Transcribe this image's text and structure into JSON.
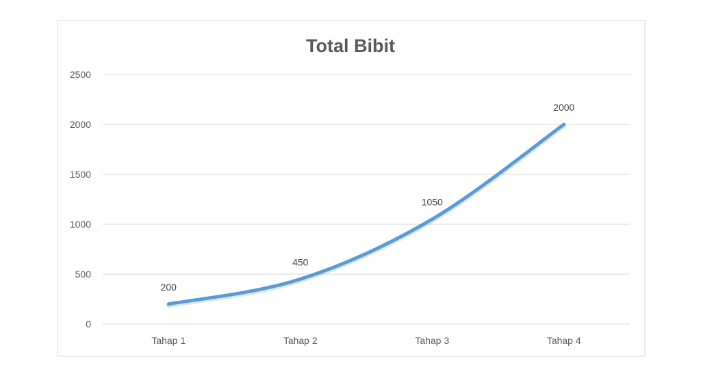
{
  "chart_data": {
    "type": "line",
    "title": "Total Bibit",
    "xlabel": "",
    "ylabel": "",
    "categories": [
      "Tahap 1",
      "Tahap 2",
      "Tahap 3",
      "Tahap 4"
    ],
    "series": [
      {
        "values": [
          200,
          450,
          1050,
          2000
        ],
        "color": "#5b9bd5"
      }
    ],
    "ylim": [
      0,
      2500
    ],
    "yticks": [
      0,
      500,
      1000,
      1500,
      2000,
      2500
    ],
    "data_labels": [
      "200",
      "450",
      "1050",
      "2000"
    ],
    "grid": true,
    "legend": "none",
    "colors": {
      "frame": "#d9d9d9",
      "grid": "#d9d9d9",
      "text": "#595959"
    }
  }
}
